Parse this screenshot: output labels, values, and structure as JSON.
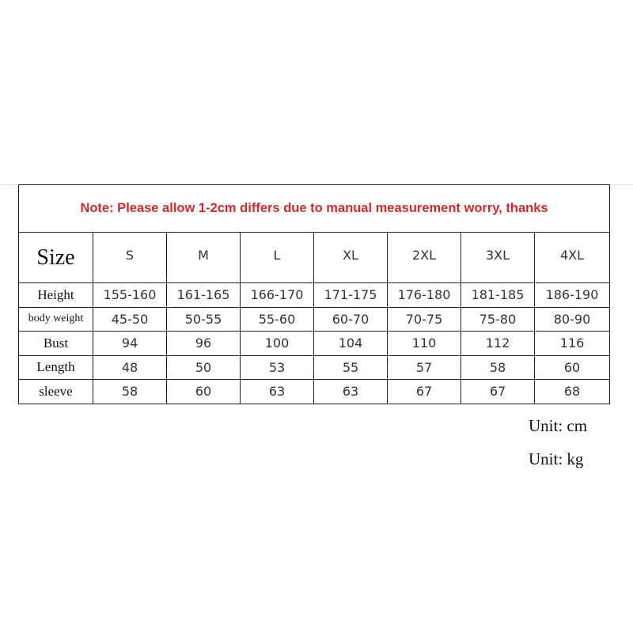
{
  "note": "Note: Please allow 1-2cm differs due to manual measurement worry, thanks",
  "size_label": "Size",
  "sizes": [
    "S",
    "M",
    "L",
    "XL",
    "2XL",
    "3XL",
    "4XL"
  ],
  "rows": [
    {
      "label": "Height",
      "values": [
        "155-160",
        "161-165",
        "166-170",
        "171-175",
        "176-180",
        "181-185",
        "186-190"
      ]
    },
    {
      "label": "body weight",
      "values": [
        "45-50",
        "50-55",
        "55-60",
        "60-70",
        "70-75",
        "75-80",
        "80-90"
      ]
    },
    {
      "label": "Bust",
      "values": [
        "94",
        "96",
        "100",
        "104",
        "110",
        "112",
        "116"
      ]
    },
    {
      "label": "Length",
      "values": [
        "48",
        "50",
        "53",
        "55",
        "57",
        "58",
        "60"
      ]
    },
    {
      "label": "sleeve",
      "values": [
        "58",
        "60",
        "63",
        "63",
        "67",
        "67",
        "68"
      ]
    }
  ],
  "units": [
    "Unit: cm",
    "Unit: kg"
  ],
  "colors": {
    "note": "#d02a2a",
    "border": "#222222"
  }
}
